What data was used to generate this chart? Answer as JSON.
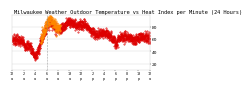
{
  "title": "Milwaukee Weather Outdoor Temperature vs Heat Index per Minute (24 Hours)",
  "title_fontsize": 3.8,
  "background_color": "#ffffff",
  "plot_bg_color": "#ffffff",
  "line_color_temp": "#dd0000",
  "line_color_heat": "#ff8800",
  "ylabel_fontsize": 3.2,
  "xlabel_fontsize": 2.5,
  "yticks": [
    20,
    40,
    60,
    80
  ],
  "ylim": [
    10,
    100
  ],
  "xlim": [
    0,
    1440
  ],
  "grid_color": "#aaaaaa",
  "marker_size": 0.8,
  "vline_x": 360,
  "vline_color": "#888888",
  "heat_index_peak_start": 300,
  "heat_index_peak_end": 480
}
